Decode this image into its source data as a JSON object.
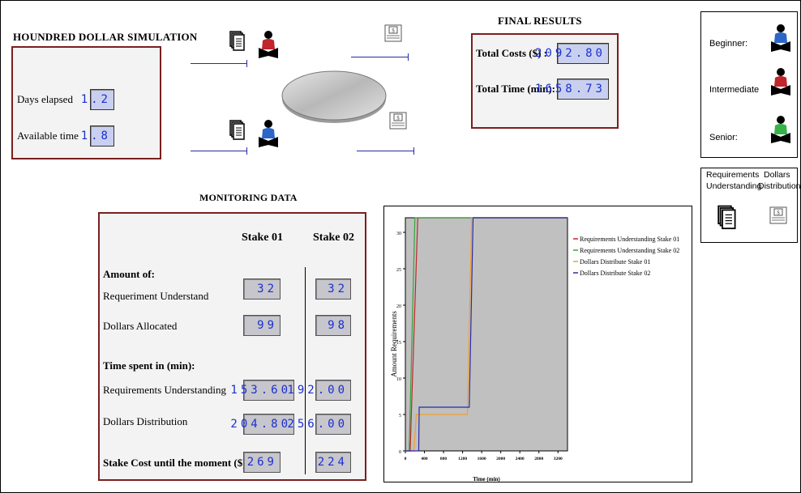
{
  "simulation": {
    "title": "HOUNDRED DOLLAR SIMULATION",
    "days_label": "Days elapsed",
    "days_value": "1.2",
    "available_label": "Available time",
    "available_value": "1.8"
  },
  "final_results": {
    "title": "FINAL RESULTS",
    "cost_label": "Total Costs ($) :",
    "cost_value": "2092.80",
    "time_label": "Total Time (min):",
    "time_value": "1658.73"
  },
  "roles_legend": {
    "beginner": "Beginner:",
    "intermediate": "Intermediate",
    "senior": "Senior:",
    "colors": {
      "beginner": "#2b66c8",
      "intermediate": "#c0262b",
      "senior": "#38b24a"
    }
  },
  "icons_legend": {
    "requirements_label_1": "Requirements",
    "requirements_label_2": "Understanding",
    "dollars_label_1": "Dollars",
    "dollars_label_2": "Distribution"
  },
  "monitoring": {
    "title": "MONITORING DATA",
    "col1": "Stake 01",
    "col2": "Stake 02",
    "amount_header": "Amount of:",
    "req_label": "Requeriment Understand",
    "req_s1": "32",
    "req_s2": "32",
    "dollars_label": "Dollars Allocated",
    "dollars_s1": "99",
    "dollars_s2": "98",
    "time_header": "Time spent in (min):",
    "req_time_label": "Requirements Understanding",
    "req_time_s1": "153.60",
    "req_time_s2": "192.00",
    "dist_time_label": "Dollars Distribution",
    "dist_time_s1": "204.80",
    "dist_time_s2": "256.00",
    "cost_label": "Stake Cost until the moment ($):",
    "cost_s1": "269",
    "cost_s2": "224"
  },
  "chart_data": {
    "type": "line",
    "title": "",
    "xlabel": "Time (min)",
    "ylabel": "Amount Requirements",
    "xlim": [
      0,
      3400
    ],
    "ylim": [
      0,
      32
    ],
    "xticks": [
      0,
      400,
      800,
      1200,
      1600,
      2000,
      2400,
      2800,
      3200
    ],
    "yticks": [
      0,
      5,
      10,
      15,
      20,
      25,
      30
    ],
    "background": "#c0c0c0",
    "legend_position": "right",
    "series": [
      {
        "name": "Requirements Understanding Stake 01",
        "color": "#c0262b",
        "x": [
          0,
          100,
          260,
          3400
        ],
        "y": [
          0,
          0,
          32,
          32
        ]
      },
      {
        "name": "Requirements Understanding Stake 02",
        "color": "#2ea83a",
        "x": [
          0,
          80,
          200,
          3400
        ],
        "y": [
          0,
          0,
          32,
          32
        ]
      },
      {
        "name": "Dollars Distribute Stake 01",
        "color": "#f0a030",
        "x": [
          0,
          180,
          230,
          1300,
          1390,
          3400
        ],
        "y": [
          0,
          0,
          5,
          5,
          32,
          32
        ]
      },
      {
        "name": "Dollars Distribute Stake 02",
        "color": "#2a2aa8",
        "x": [
          0,
          280,
          290,
          1340,
          1420,
          3400
        ],
        "y": [
          0,
          0,
          6,
          6,
          32,
          32
        ]
      }
    ]
  }
}
